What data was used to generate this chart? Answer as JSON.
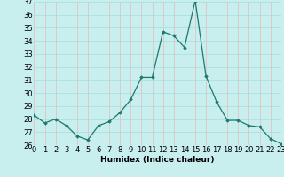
{
  "x": [
    0,
    1,
    2,
    3,
    4,
    5,
    6,
    7,
    8,
    9,
    10,
    11,
    12,
    13,
    14,
    15,
    16,
    17,
    18,
    19,
    20,
    21,
    22,
    23
  ],
  "y": [
    28.3,
    27.7,
    28.0,
    27.5,
    26.7,
    26.4,
    27.5,
    27.8,
    28.5,
    29.5,
    31.2,
    31.2,
    34.7,
    34.4,
    33.5,
    37.1,
    31.3,
    29.3,
    27.9,
    27.9,
    27.5,
    27.4,
    26.5,
    26.1
  ],
  "xlabel": "Humidex (Indice chaleur)",
  "xlim": [
    0,
    23
  ],
  "ylim": [
    26,
    37
  ],
  "yticks": [
    26,
    27,
    28,
    29,
    30,
    31,
    32,
    33,
    34,
    35,
    36,
    37
  ],
  "xticks": [
    0,
    1,
    2,
    3,
    4,
    5,
    6,
    7,
    8,
    9,
    10,
    11,
    12,
    13,
    14,
    15,
    16,
    17,
    18,
    19,
    20,
    21,
    22,
    23
  ],
  "line_color": "#1a7a6e",
  "marker_color": "#1a7a6e",
  "bg_color": "#c8eeee",
  "grid_color_x": "#e8b8b8",
  "grid_color_y": "#a8dddd",
  "label_fontsize": 6.5,
  "tick_fontsize": 6.0
}
